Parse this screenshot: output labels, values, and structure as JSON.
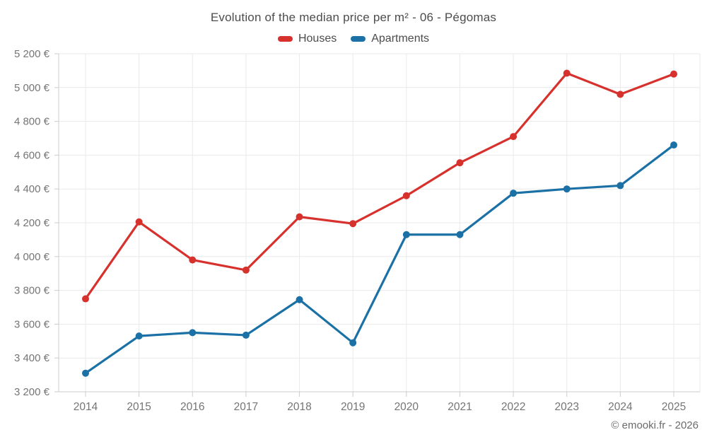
{
  "header": {
    "title": "Evolution of the median price per m² - 06 - Pégomas"
  },
  "footer": {
    "credit": "© emooki.fr - 2026"
  },
  "colors": {
    "houses": "#d7312d",
    "apartments": "#1b71a5",
    "grid": "#e9e9e9",
    "axis": "#cccccc",
    "tick_label": "#757575",
    "title_text": "#4c4c4c"
  },
  "chart_data": {
    "type": "line",
    "title": "Evolution of the median price per m² - 06 - Pégomas",
    "categories": [
      "2014",
      "2015",
      "2016",
      "2017",
      "2018",
      "2019",
      "2020",
      "2021",
      "2022",
      "2023",
      "2024",
      "2025"
    ],
    "series": [
      {
        "name": "Houses",
        "color": "#d7312d",
        "values": [
          3750,
          4205,
          3980,
          3920,
          4235,
          4195,
          4360,
          4555,
          4710,
          5085,
          4960,
          5080
        ]
      },
      {
        "name": "Apartments",
        "color": "#1b71a5",
        "values": [
          3310,
          3530,
          3550,
          3535,
          3745,
          3490,
          4130,
          4130,
          4375,
          4400,
          4420,
          4660
        ]
      }
    ],
    "xlabel": "",
    "ylabel": "",
    "ylim": [
      3200,
      5200
    ],
    "ytick_step": 200,
    "ytick_labels": [
      "3 200 €",
      "3 400 €",
      "3 600 €",
      "3 800 €",
      "4 000 €",
      "4 200 €",
      "4 400 €",
      "4 600 €",
      "4 800 €",
      "5 000 €",
      "5 200 €"
    ],
    "grid": true,
    "legend_position": "top"
  }
}
